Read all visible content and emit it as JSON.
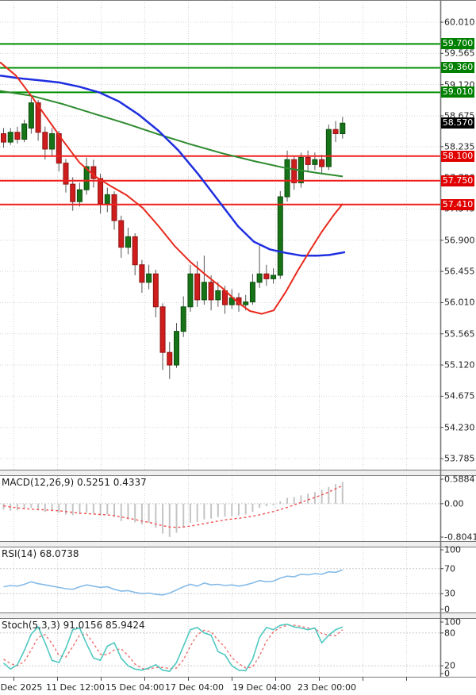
{
  "window": {
    "kind": "trading-chart",
    "background": "#ffffff"
  },
  "colors": {
    "bull_body": "#177317",
    "bull_border": "#0b4d0b",
    "bear_body": "#cf1d1d",
    "bear_border": "#8f1212",
    "wick": "#555555",
    "resistance_line": "#009000",
    "support_line": "#ef1f1f",
    "badge_resistance_bg": "#008000",
    "badge_support_bg": "#e00000",
    "badge_current_bg": "#000000",
    "badge_text": "#ffffff",
    "grid": "#d4d4d4",
    "panel_border": "#787878",
    "axis_text": "#1f1f1f"
  },
  "chart_data": [
    {
      "type": "candlestick",
      "name": "price-panel",
      "x_labels": [
        "Dec 2025",
        "11 Dec 12:00",
        "15 Dec 04:00",
        "17 Dec 04:00",
        "19 Dec 04:00",
        "23 Dec 00:00"
      ],
      "y_tick_labels": [
        "60.010",
        "59.565",
        "59.120",
        "58.675",
        "58.235",
        "57.790",
        "57.345",
        "56.900",
        "56.455",
        "56.010",
        "55.565",
        "55.120",
        "54.675",
        "54.230",
        "53.785"
      ],
      "ylim": [
        53.627,
        60.327
      ],
      "resistance_levels": [
        "59.700",
        "59.360",
        "59.010"
      ],
      "support_levels": [
        "58.100",
        "57.750",
        "57.410"
      ],
      "current_price": "58.570",
      "candles_ohlc": [
        [
          58.42,
          58.5,
          58.22,
          58.3
        ],
        [
          58.3,
          58.5,
          58.26,
          58.44
        ],
        [
          58.44,
          58.52,
          58.28,
          58.34
        ],
        [
          58.34,
          58.62,
          58.3,
          58.56
        ],
        [
          58.5,
          58.93,
          58.42,
          58.86
        ],
        [
          58.86,
          58.9,
          58.32,
          58.44
        ],
        [
          58.44,
          58.52,
          58.05,
          58.2
        ],
        [
          58.2,
          58.5,
          58.1,
          58.42
        ],
        [
          58.42,
          58.46,
          57.88,
          58.0
        ],
        [
          58.0,
          58.06,
          57.58,
          57.7
        ],
        [
          57.7,
          57.8,
          57.32,
          57.45
        ],
        [
          57.45,
          57.72,
          57.38,
          57.62
        ],
        [
          57.62,
          58.08,
          57.55,
          57.95
        ],
        [
          57.95,
          58.05,
          57.65,
          57.78
        ],
        [
          57.78,
          57.85,
          57.28,
          57.42
        ],
        [
          57.42,
          57.65,
          57.3,
          57.55
        ],
        [
          57.55,
          57.6,
          57.05,
          57.18
        ],
        [
          57.18,
          57.25,
          56.65,
          56.8
        ],
        [
          56.8,
          57.08,
          56.7,
          56.95
        ],
        [
          56.95,
          57.0,
          56.4,
          56.55
        ],
        [
          56.55,
          56.62,
          56.15,
          56.3
        ],
        [
          56.3,
          56.55,
          56.2,
          56.42
        ],
        [
          56.42,
          56.48,
          55.8,
          55.95
        ],
        [
          55.95,
          56.0,
          55.05,
          55.3
        ],
        [
          55.3,
          55.45,
          54.92,
          55.12
        ],
        [
          55.12,
          55.72,
          55.08,
          55.6
        ],
        [
          55.6,
          56.1,
          55.52,
          55.95
        ],
        [
          55.95,
          56.55,
          55.88,
          56.42
        ],
        [
          56.42,
          56.6,
          55.95,
          56.05
        ],
        [
          56.05,
          56.68,
          55.98,
          56.3
        ],
        [
          56.3,
          56.4,
          55.9,
          56.05
        ],
        [
          56.05,
          56.3,
          55.95,
          56.18
        ],
        [
          56.18,
          56.25,
          55.85,
          55.98
        ],
        [
          55.98,
          56.2,
          55.92,
          56.08
        ],
        [
          56.08,
          56.15,
          55.88,
          55.98
        ],
        [
          55.98,
          56.12,
          55.9,
          56.02
        ],
        [
          56.02,
          56.42,
          55.98,
          56.3
        ],
        [
          56.3,
          56.85,
          56.22,
          56.42
        ],
        [
          56.42,
          56.55,
          56.25,
          56.35
        ],
        [
          56.35,
          56.5,
          56.28,
          56.4
        ],
        [
          56.4,
          57.6,
          56.35,
          57.52
        ],
        [
          57.52,
          58.18,
          57.45,
          58.05
        ],
        [
          58.05,
          58.1,
          57.62,
          57.72
        ],
        [
          57.72,
          58.15,
          57.65,
          58.08
        ],
        [
          58.08,
          58.18,
          57.88,
          57.98
        ],
        [
          57.98,
          58.15,
          57.9,
          58.05
        ],
        [
          58.05,
          58.12,
          57.85,
          57.95
        ],
        [
          57.95,
          58.55,
          57.9,
          58.48
        ],
        [
          58.48,
          58.6,
          58.3,
          58.42
        ],
        [
          58.42,
          58.66,
          58.35,
          58.57
        ]
      ],
      "moving_averages": [
        {
          "name": "ma-slow-green",
          "color": "#2e8b2e",
          "width": 2,
          "points": [
            [
              0,
              59.03
            ],
            [
              40,
              58.96
            ],
            [
              80,
              58.84
            ],
            [
              120,
              58.7
            ],
            [
              160,
              58.56
            ],
            [
              200,
              58.41
            ],
            [
              240,
              58.27
            ],
            [
              280,
              58.14
            ],
            [
              320,
              58.03
            ],
            [
              360,
              57.93
            ],
            [
              400,
              57.86
            ],
            [
              432,
              57.81
            ]
          ]
        },
        {
          "name": "ma-mid-blue",
          "color": "#1f2fe0",
          "width": 2.5,
          "points": [
            [
              0,
              59.25
            ],
            [
              25,
              59.21
            ],
            [
              50,
              59.18
            ],
            [
              75,
              59.15
            ],
            [
              100,
              59.09
            ],
            [
              125,
              59.01
            ],
            [
              150,
              58.88
            ],
            [
              175,
              58.69
            ],
            [
              200,
              58.46
            ],
            [
              225,
              58.18
            ],
            [
              250,
              57.84
            ],
            [
              275,
              57.47
            ],
            [
              300,
              57.1
            ],
            [
              320,
              56.88
            ],
            [
              340,
              56.77
            ],
            [
              360,
              56.72
            ],
            [
              380,
              56.68
            ],
            [
              400,
              56.68
            ],
            [
              415,
              56.69
            ],
            [
              435,
              56.73
            ]
          ]
        },
        {
          "name": "ma-fast-red",
          "color": "#e8291c",
          "width": 2,
          "points": [
            [
              0,
              59.44
            ],
            [
              20,
              59.25
            ],
            [
              40,
              58.95
            ],
            [
              60,
              58.63
            ],
            [
              80,
              58.31
            ],
            [
              100,
              58.01
            ],
            [
              120,
              57.81
            ],
            [
              140,
              57.67
            ],
            [
              160,
              57.54
            ],
            [
              180,
              57.36
            ],
            [
              200,
              57.1
            ],
            [
              220,
              56.82
            ],
            [
              240,
              56.59
            ],
            [
              260,
              56.4
            ],
            [
              280,
              56.22
            ],
            [
              300,
              56.01
            ],
            [
              315,
              55.89
            ],
            [
              330,
              55.85
            ],
            [
              345,
              55.9
            ],
            [
              360,
              56.16
            ],
            [
              375,
              56.46
            ],
            [
              390,
              56.74
            ],
            [
              405,
              57.01
            ],
            [
              420,
              57.25
            ],
            [
              432,
              57.42
            ]
          ]
        }
      ]
    },
    {
      "type": "bar",
      "name": "macd-panel",
      "label": "MACD(12,26,9) 0.5251 0.4337",
      "y_tick_labels": [
        "0.5884",
        "0.00",
        "-0.8041"
      ],
      "ylim": [
        -0.9,
        0.665
      ],
      "zero_line": 0,
      "histogram_color": "#c4c4c4",
      "signal_color": "#f05050",
      "histogram": [
        -0.14,
        -0.17,
        -0.16,
        -0.13,
        -0.1,
        -0.16,
        -0.2,
        -0.18,
        -0.22,
        -0.26,
        -0.28,
        -0.25,
        -0.22,
        -0.24,
        -0.28,
        -0.26,
        -0.32,
        -0.42,
        -0.38,
        -0.45,
        -0.5,
        -0.46,
        -0.58,
        -0.72,
        -0.8,
        -0.7,
        -0.58,
        -0.46,
        -0.44,
        -0.38,
        -0.36,
        -0.32,
        -0.31,
        -0.3,
        -0.28,
        -0.26,
        -0.2,
        -0.1,
        -0.06,
        -0.04,
        0.06,
        0.14,
        0.16,
        0.2,
        0.24,
        0.28,
        0.33,
        0.4,
        0.47,
        0.525
      ],
      "signal": [
        -0.05,
        -0.08,
        -0.1,
        -0.12,
        -0.13,
        -0.14,
        -0.15,
        -0.16,
        -0.17,
        -0.19,
        -0.21,
        -0.23,
        -0.24,
        -0.25,
        -0.26,
        -0.27,
        -0.29,
        -0.32,
        -0.35,
        -0.38,
        -0.42,
        -0.45,
        -0.49,
        -0.53,
        -0.56,
        -0.57,
        -0.56,
        -0.54,
        -0.51,
        -0.48,
        -0.45,
        -0.42,
        -0.39,
        -0.37,
        -0.35,
        -0.33,
        -0.3,
        -0.27,
        -0.23,
        -0.19,
        -0.14,
        -0.09,
        -0.03,
        0.03,
        0.09,
        0.15,
        0.21,
        0.28,
        0.36,
        0.434
      ]
    },
    {
      "type": "line",
      "name": "rsi-panel",
      "label": "RSI(14) 68.0738",
      "y_tick_labels": [
        "100",
        "70",
        "30",
        "0"
      ],
      "ref_levels": [
        70,
        30
      ],
      "ylim": [
        0,
        103.8
      ],
      "line_color": "#85bbe8",
      "values": [
        41,
        43,
        42,
        45,
        49,
        46,
        44,
        42,
        40,
        38,
        37,
        41,
        44,
        42,
        40,
        41,
        37,
        34,
        35,
        32,
        30,
        31,
        29,
        28,
        31,
        36,
        41,
        45,
        42,
        47,
        44,
        45,
        43,
        44,
        42,
        44,
        47,
        51,
        49,
        50,
        55,
        58,
        57,
        61,
        60,
        62,
        61,
        65,
        64,
        68
      ]
    },
    {
      "type": "line",
      "name": "stoch-panel",
      "label": "Stoch(5,3,3) 91.0156 85.9424",
      "y_tick_labels": [
        "100",
        "80",
        "20",
        "0"
      ],
      "ref_levels": [
        80,
        20
      ],
      "ylim": [
        0,
        105.8
      ],
      "k_color": "#4fc8c0",
      "d_color": "#f07070",
      "k_values": [
        25,
        14,
        22,
        48,
        78,
        91,
        62,
        30,
        26,
        52,
        86,
        89,
        60,
        34,
        30,
        56,
        62,
        34,
        20,
        14,
        12,
        16,
        22,
        12,
        10,
        26,
        56,
        86,
        90,
        80,
        76,
        46,
        40,
        20,
        12,
        11,
        32,
        72,
        90,
        86,
        94,
        96,
        91,
        89,
        86,
        89,
        62,
        76,
        86,
        91
      ],
      "d_values": [
        32,
        24,
        20,
        28,
        49,
        72,
        77,
        61,
        39,
        36,
        55,
        76,
        78,
        61,
        41,
        40,
        49,
        51,
        39,
        23,
        15,
        14,
        17,
        17,
        15,
        16,
        31,
        56,
        77,
        85,
        82,
        67,
        54,
        35,
        24,
        16,
        18,
        38,
        65,
        82,
        90,
        94,
        94,
        92,
        89,
        88,
        79,
        76,
        75,
        86
      ]
    }
  ]
}
